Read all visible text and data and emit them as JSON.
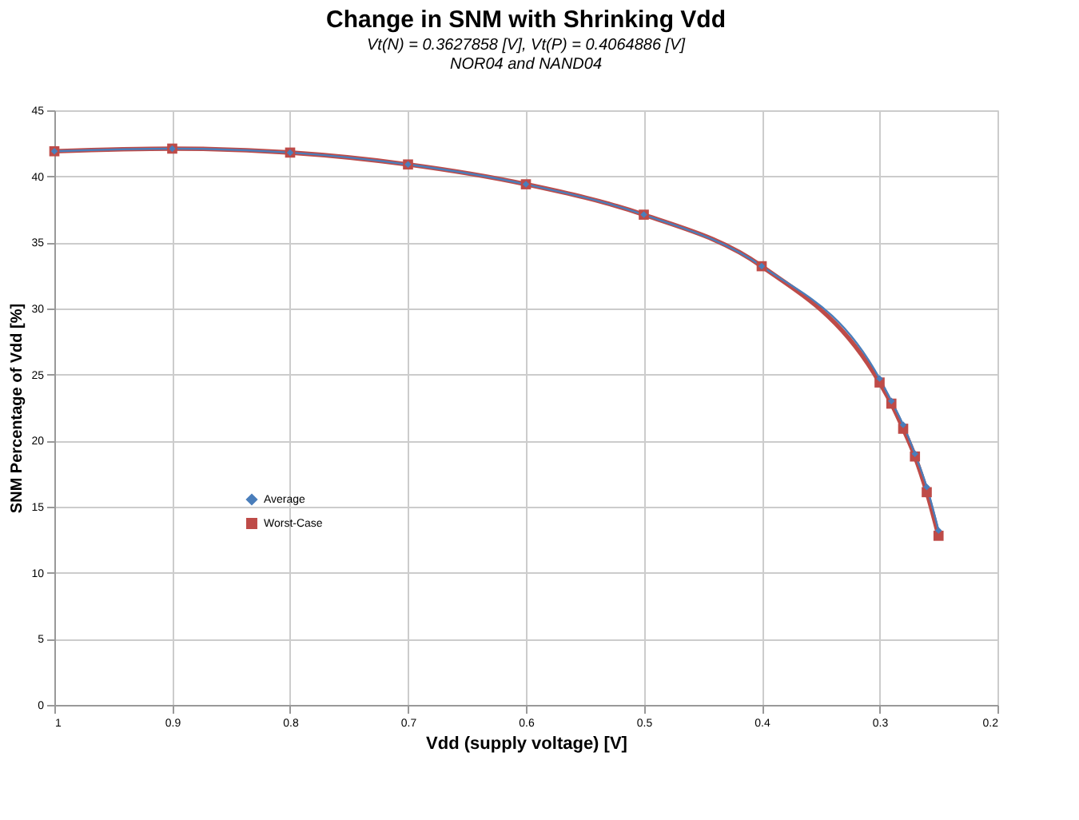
{
  "chart_data": {
    "type": "line",
    "title": "Change in SNM with Shrinking Vdd",
    "subtitle": [
      "Vt(N) = 0.3627858 [V], Vt(P) = 0.4064886 [V]",
      "NOR04 and NAND04"
    ],
    "xlabel": "Vdd (supply voltage) [V]",
    "ylabel": "SNM Percentage of Vdd [%]",
    "xlim": [
      1,
      0.2
    ],
    "xticks": [
      1,
      0.9,
      0.8,
      0.7,
      0.6,
      0.5,
      0.4,
      0.3,
      0.2
    ],
    "ylim": [
      0,
      45
    ],
    "yticks": [
      0,
      5,
      10,
      15,
      20,
      25,
      30,
      35,
      40,
      45
    ],
    "grid": true,
    "legend": "left",
    "series": [
      {
        "name": "Average",
        "color": "#4a7ebb",
        "marker": "diamond",
        "x": [
          1,
          0.9,
          0.8,
          0.7,
          0.6,
          0.5,
          0.4,
          0.3,
          0.29,
          0.28,
          0.27,
          0.26,
          0.25
        ],
        "values": [
          41.9,
          42.1,
          41.8,
          40.9,
          39.4,
          37.1,
          33.2,
          24.7,
          23.0,
          21.2,
          19.0,
          16.5,
          13.2
        ]
      },
      {
        "name": "Worst-Case",
        "color": "#be4b48",
        "marker": "square",
        "x": [
          1,
          0.9,
          0.8,
          0.7,
          0.6,
          0.5,
          0.4,
          0.3,
          0.29,
          0.28,
          0.27,
          0.26,
          0.25
        ],
        "values": [
          41.9,
          42.1,
          41.8,
          40.9,
          39.4,
          37.1,
          33.2,
          24.4,
          22.8,
          20.9,
          18.8,
          16.1,
          12.8
        ]
      }
    ]
  }
}
